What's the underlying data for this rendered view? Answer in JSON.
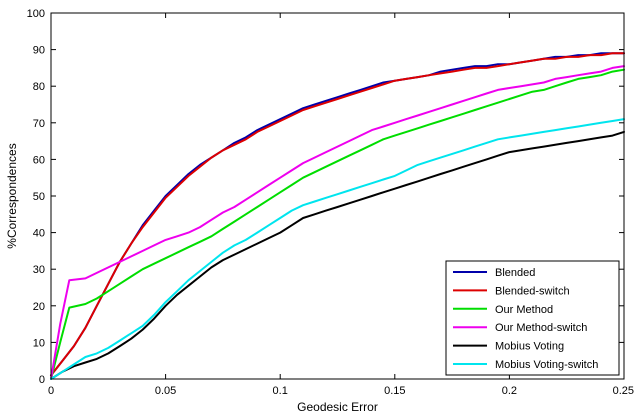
{
  "chart_data": {
    "type": "line",
    "title": "",
    "xlabel": "Geodesic Error",
    "ylabel": "%Correspondences",
    "xlim": [
      0,
      0.25
    ],
    "ylim": [
      0,
      100
    ],
    "xticks": [
      0,
      0.05,
      0.1,
      0.15,
      0.2,
      0.25
    ],
    "xtick_labels": [
      "0",
      "0.05",
      "0.1",
      "0.15",
      "0.2",
      "0.25"
    ],
    "yticks": [
      0,
      10,
      20,
      30,
      40,
      50,
      60,
      70,
      80,
      90,
      100
    ],
    "ytick_labels": [
      "0",
      "10",
      "20",
      "30",
      "40",
      "50",
      "60",
      "70",
      "80",
      "90",
      "100"
    ],
    "grid": false,
    "legend_position": "bottom-right",
    "series": [
      {
        "name": "Blended",
        "color": "#0000aa",
        "x": [
          0,
          0.005,
          0.01,
          0.015,
          0.02,
          0.025,
          0.03,
          0.035,
          0.04,
          0.045,
          0.05,
          0.055,
          0.06,
          0.065,
          0.07,
          0.075,
          0.08,
          0.085,
          0.09,
          0.095,
          0.1,
          0.105,
          0.11,
          0.115,
          0.12,
          0.125,
          0.13,
          0.135,
          0.14,
          0.145,
          0.15,
          0.155,
          0.16,
          0.165,
          0.17,
          0.175,
          0.18,
          0.185,
          0.19,
          0.195,
          0.2,
          0.205,
          0.21,
          0.215,
          0.22,
          0.225,
          0.23,
          0.235,
          0.24,
          0.245,
          0.25
        ],
        "y": [
          1,
          5,
          9,
          14,
          20,
          26,
          32,
          37,
          42,
          46,
          50,
          53,
          56,
          58.5,
          60.5,
          62.5,
          64.5,
          66,
          68,
          69.5,
          71,
          72.5,
          74,
          75,
          76,
          77,
          78,
          79,
          80,
          81,
          81.5,
          82,
          82.5,
          83,
          84,
          84.5,
          85,
          85.5,
          85.5,
          86,
          86,
          86.5,
          87,
          87.5,
          88,
          88,
          88.5,
          88.5,
          89,
          89,
          89
        ]
      },
      {
        "name": "Blended-switch",
        "color": "#dd0000",
        "x": [
          0,
          0.005,
          0.01,
          0.015,
          0.02,
          0.025,
          0.03,
          0.035,
          0.04,
          0.045,
          0.05,
          0.055,
          0.06,
          0.065,
          0.07,
          0.075,
          0.08,
          0.085,
          0.09,
          0.095,
          0.1,
          0.105,
          0.11,
          0.115,
          0.12,
          0.125,
          0.13,
          0.135,
          0.14,
          0.145,
          0.15,
          0.155,
          0.16,
          0.165,
          0.17,
          0.175,
          0.18,
          0.185,
          0.19,
          0.195,
          0.2,
          0.205,
          0.21,
          0.215,
          0.22,
          0.225,
          0.23,
          0.235,
          0.24,
          0.245,
          0.25
        ],
        "y": [
          1,
          5,
          9,
          14,
          20,
          26,
          32,
          37,
          41.5,
          45.5,
          49.5,
          52.5,
          55.5,
          58,
          60.5,
          62.5,
          64,
          65.5,
          67.5,
          69,
          70.5,
          72,
          73.5,
          74.5,
          75.5,
          76.5,
          77.5,
          78.5,
          79.5,
          80.5,
          81.5,
          82,
          82.5,
          83,
          83.5,
          84,
          84.5,
          85,
          85,
          85.5,
          86,
          86.5,
          87,
          87.5,
          87.5,
          88,
          88,
          88.5,
          88.5,
          89,
          89
        ]
      },
      {
        "name": "Our Method",
        "color": "#00dd00",
        "x": [
          0,
          0.004,
          0.008,
          0.015,
          0.02,
          0.025,
          0.03,
          0.035,
          0.04,
          0.045,
          0.05,
          0.055,
          0.06,
          0.065,
          0.07,
          0.075,
          0.08,
          0.085,
          0.09,
          0.095,
          0.1,
          0.105,
          0.11,
          0.115,
          0.12,
          0.125,
          0.13,
          0.135,
          0.14,
          0.145,
          0.15,
          0.155,
          0.16,
          0.165,
          0.17,
          0.175,
          0.18,
          0.185,
          0.19,
          0.195,
          0.2,
          0.205,
          0.21,
          0.215,
          0.22,
          0.225,
          0.23,
          0.235,
          0.24,
          0.245,
          0.25
        ],
        "y": [
          0,
          10,
          19.5,
          20.5,
          22,
          24,
          26,
          28,
          30,
          31.5,
          33,
          34.5,
          36,
          37.5,
          39,
          41,
          43,
          45,
          47,
          49,
          51,
          53,
          55,
          56.5,
          58,
          59.5,
          61,
          62.5,
          64,
          65.5,
          66.5,
          67.5,
          68.5,
          69.5,
          70.5,
          71.5,
          72.5,
          73.5,
          74.5,
          75.5,
          76.5,
          77.5,
          78.5,
          79,
          80,
          81,
          82,
          82.5,
          83,
          84,
          84.5
        ]
      },
      {
        "name": "Our Method-switch",
        "color": "#ee00ee",
        "x": [
          0,
          0.004,
          0.008,
          0.015,
          0.02,
          0.025,
          0.03,
          0.035,
          0.04,
          0.045,
          0.05,
          0.055,
          0.06,
          0.065,
          0.07,
          0.075,
          0.08,
          0.085,
          0.09,
          0.095,
          0.1,
          0.105,
          0.11,
          0.115,
          0.12,
          0.125,
          0.13,
          0.135,
          0.14,
          0.145,
          0.15,
          0.155,
          0.16,
          0.165,
          0.17,
          0.175,
          0.18,
          0.185,
          0.19,
          0.195,
          0.2,
          0.205,
          0.21,
          0.215,
          0.22,
          0.225,
          0.23,
          0.235,
          0.24,
          0.245,
          0.25
        ],
        "y": [
          0,
          15,
          27,
          27.5,
          29,
          30.5,
          32,
          33.5,
          35,
          36.5,
          38,
          39,
          40,
          41.5,
          43.5,
          45.5,
          47,
          49,
          51,
          53,
          55,
          57,
          59,
          60.5,
          62,
          63.5,
          65,
          66.5,
          68,
          69,
          70,
          71,
          72,
          73,
          74,
          75,
          76,
          77,
          78,
          79,
          79.5,
          80,
          80.5,
          81,
          82,
          82.5,
          83,
          83.5,
          84,
          85,
          85.5
        ]
      },
      {
        "name": "Mobius Voting",
        "color": "#000000",
        "x": [
          0,
          0.005,
          0.01,
          0.015,
          0.02,
          0.025,
          0.03,
          0.035,
          0.04,
          0.045,
          0.05,
          0.055,
          0.06,
          0.065,
          0.07,
          0.075,
          0.08,
          0.085,
          0.09,
          0.095,
          0.1,
          0.105,
          0.11,
          0.115,
          0.12,
          0.125,
          0.13,
          0.135,
          0.14,
          0.145,
          0.15,
          0.155,
          0.16,
          0.165,
          0.17,
          0.175,
          0.18,
          0.185,
          0.19,
          0.195,
          0.2,
          0.205,
          0.21,
          0.215,
          0.22,
          0.225,
          0.23,
          0.235,
          0.24,
          0.245,
          0.25
        ],
        "y": [
          0,
          2,
          3.5,
          4.5,
          5.5,
          7,
          9,
          11,
          13.5,
          16.5,
          20,
          23,
          25.5,
          28,
          30.5,
          32.5,
          34,
          35.5,
          37,
          38.5,
          40,
          42,
          44,
          45,
          46,
          47,
          48,
          49,
          50,
          51,
          52,
          53,
          54,
          55,
          56,
          57,
          58,
          59,
          60,
          61,
          62,
          62.5,
          63,
          63.5,
          64,
          64.5,
          65,
          65.5,
          66,
          66.5,
          67.5
        ]
      },
      {
        "name": "Mobius Voting-switch",
        "color": "#00e5ee",
        "x": [
          0,
          0.005,
          0.01,
          0.015,
          0.02,
          0.025,
          0.03,
          0.035,
          0.04,
          0.045,
          0.05,
          0.055,
          0.06,
          0.065,
          0.07,
          0.075,
          0.08,
          0.085,
          0.09,
          0.095,
          0.1,
          0.105,
          0.11,
          0.115,
          0.12,
          0.125,
          0.13,
          0.135,
          0.14,
          0.145,
          0.15,
          0.155,
          0.16,
          0.165,
          0.17,
          0.175,
          0.18,
          0.185,
          0.19,
          0.195,
          0.2,
          0.205,
          0.21,
          0.215,
          0.22,
          0.225,
          0.23,
          0.235,
          0.24,
          0.245,
          0.25
        ],
        "y": [
          0,
          2,
          4,
          6,
          7,
          8.5,
          10.5,
          12.5,
          14.5,
          17.5,
          21,
          24,
          27,
          29.5,
          32,
          34.5,
          36.5,
          38,
          40,
          42,
          44,
          46,
          47.5,
          48.5,
          49.5,
          50.5,
          51.5,
          52.5,
          53.5,
          54.5,
          55.5,
          57,
          58.5,
          59.5,
          60.5,
          61.5,
          62.5,
          63.5,
          64.5,
          65.5,
          66,
          66.5,
          67,
          67.5,
          68,
          68.5,
          69,
          69.5,
          70,
          70.5,
          71
        ]
      }
    ]
  }
}
